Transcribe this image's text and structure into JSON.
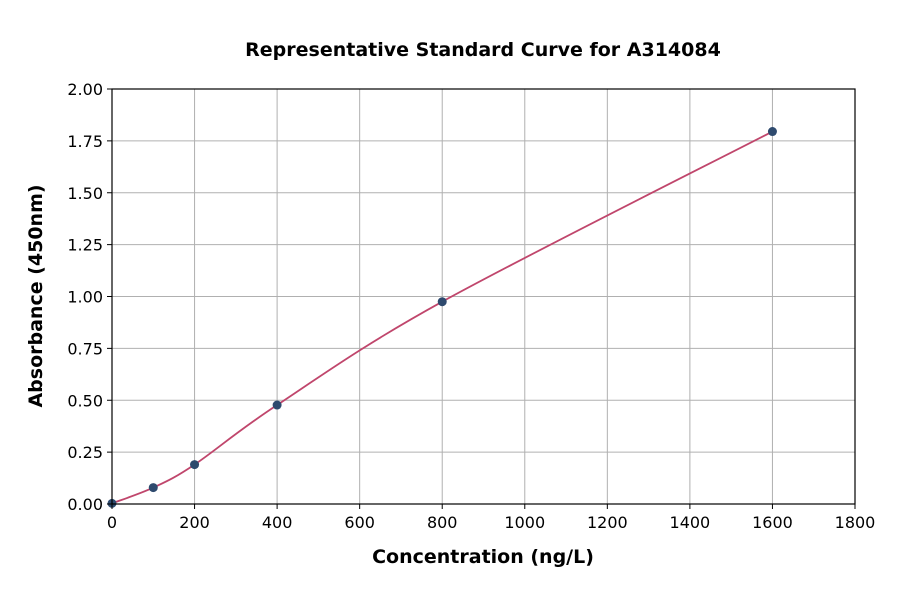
{
  "chart_data": {
    "type": "scatter",
    "title": "Representative Standard Curve for A314084",
    "xlabel": "Concentration (ng/L)",
    "ylabel": "Absorbance (450nm)",
    "xlim": [
      0,
      1800
    ],
    "ylim": [
      0,
      2.0
    ],
    "xticks": [
      "0",
      "200",
      "400",
      "600",
      "800",
      "1000",
      "1200",
      "1400",
      "1600",
      "1800"
    ],
    "yticks": [
      "0.00",
      "0.25",
      "0.50",
      "0.75",
      "1.00",
      "1.25",
      "1.50",
      "1.75",
      "2.00"
    ],
    "grid": true,
    "x": [
      0,
      100,
      200,
      400,
      800,
      1600
    ],
    "y": [
      0.003,
      0.079,
      0.19,
      0.477,
      0.975,
      1.795
    ],
    "point_color": "#2e4a6e",
    "curve_color": "#c0466c"
  }
}
